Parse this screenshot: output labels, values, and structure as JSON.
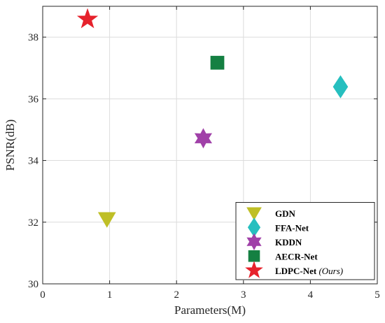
{
  "chart_data": {
    "type": "scatter",
    "title": "",
    "xlabel": "Parameters(M)",
    "ylabel": "PSNR(dB)",
    "xlim": [
      0,
      5
    ],
    "ylim": [
      30,
      39
    ],
    "xticks": [
      0,
      1,
      2,
      3,
      4,
      5
    ],
    "yticks": [
      30,
      32,
      34,
      36,
      38
    ],
    "grid": true,
    "legend_position": "bottom-right",
    "series": [
      {
        "name": "GDN",
        "x": 0.96,
        "y": 32.1,
        "marker": "triangle-down",
        "color": "#bfbf26"
      },
      {
        "name": "FFA-Net",
        "x": 4.45,
        "y": 36.39,
        "marker": "diamond",
        "color": "#26bfbf"
      },
      {
        "name": "KDDN",
        "x": 2.4,
        "y": 34.72,
        "marker": "hexagram",
        "color": "#a040a8"
      },
      {
        "name": "AECR-Net",
        "x": 2.61,
        "y": 37.17,
        "marker": "square",
        "color": "#148042"
      },
      {
        "name": "LDPC-Net",
        "name_suffix": "(Ours)",
        "x": 0.67,
        "y": 38.58,
        "marker": "star",
        "color": "#e6222c"
      }
    ]
  }
}
